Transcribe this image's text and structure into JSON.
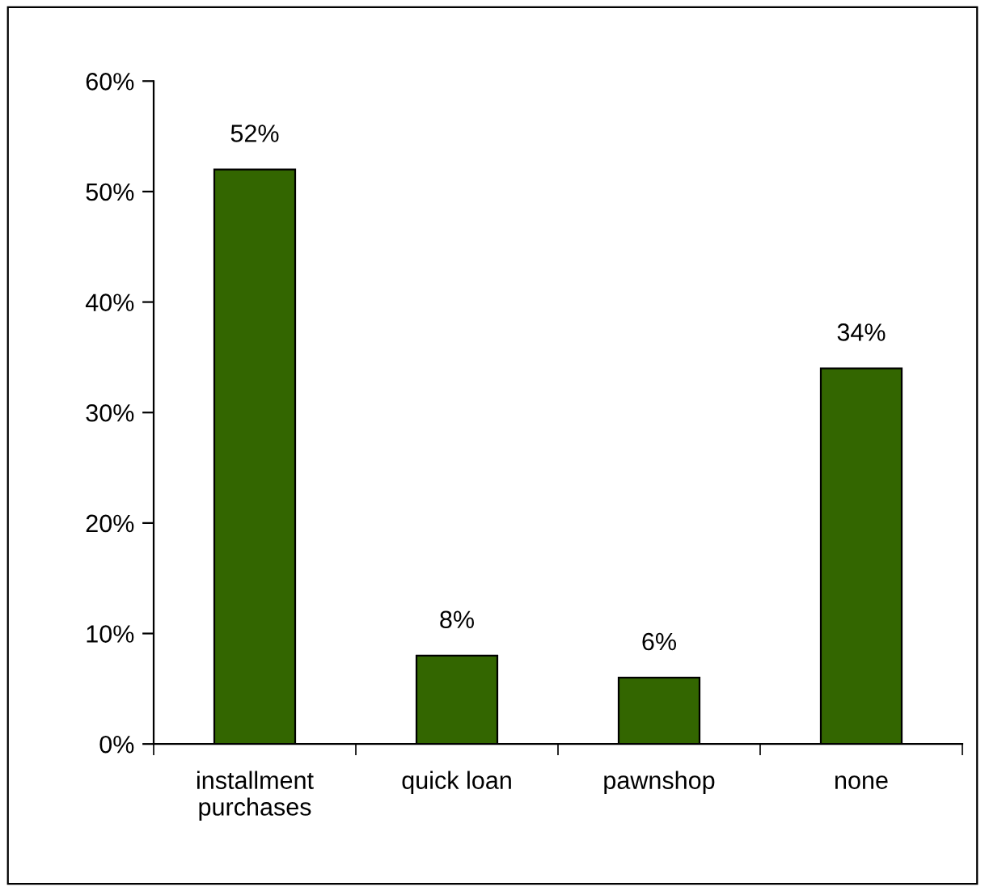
{
  "chart_data": {
    "type": "bar",
    "categories": [
      "installment purchases",
      "quick loan",
      "pawnshop",
      "none"
    ],
    "values": [
      52,
      8,
      6,
      34
    ],
    "value_labels": [
      "52%",
      "8%",
      "6%",
      "34%"
    ],
    "color": "#336600",
    "ylim": [
      0,
      60
    ],
    "yticks": [
      {
        "value": 0,
        "label": "0%"
      },
      {
        "value": 10,
        "label": "10%"
      },
      {
        "value": 20,
        "label": "20%"
      },
      {
        "value": 30,
        "label": "30%"
      },
      {
        "value": 40,
        "label": "40%"
      },
      {
        "value": 50,
        "label": "50%"
      },
      {
        "value": 60,
        "label": "60%"
      }
    ],
    "grid": false,
    "legend": false
  }
}
